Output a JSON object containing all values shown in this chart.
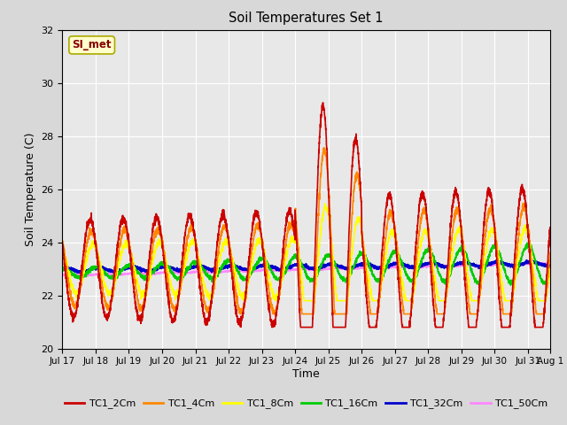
{
  "title": "Soil Temperatures Set 1",
  "xlabel": "Time",
  "ylabel": "Soil Temperature (C)",
  "ylim": [
    20,
    32
  ],
  "xlim": [
    0,
    352
  ],
  "background_color": "#e8e8e8",
  "grid_color": "#ffffff",
  "tick_labels": [
    "Jul 17",
    "Jul 18",
    "Jul 19",
    "Jul 20",
    "Jul 21",
    "Jul 22",
    "Jul 23",
    "Jul 24",
    "Jul 25",
    "Jul 26",
    "Jul 27",
    "Jul 28",
    "Jul 29",
    "Jul 30",
    "Jul 31",
    "Aug 1"
  ],
  "tick_positions": [
    0,
    24,
    48,
    72,
    96,
    120,
    144,
    168,
    192,
    216,
    240,
    264,
    288,
    312,
    336,
    352
  ],
  "series": {
    "TC1_2Cm": {
      "color": "#cc0000",
      "lw": 1.2
    },
    "TC1_4Cm": {
      "color": "#ff8800",
      "lw": 1.2
    },
    "TC1_8Cm": {
      "color": "#ffff00",
      "lw": 1.2
    },
    "TC1_16Cm": {
      "color": "#00cc00",
      "lw": 1.2
    },
    "TC1_32Cm": {
      "color": "#0000cc",
      "lw": 1.5
    },
    "TC1_50Cm": {
      "color": "#ff88ff",
      "lw": 1.2
    }
  },
  "annotation_text": "SI_met",
  "annotation_color": "#880000",
  "annotation_bg": "#ffffcc",
  "annotation_border": "#aaaa00",
  "figsize": [
    6.4,
    4.8
  ],
  "dpi": 100
}
